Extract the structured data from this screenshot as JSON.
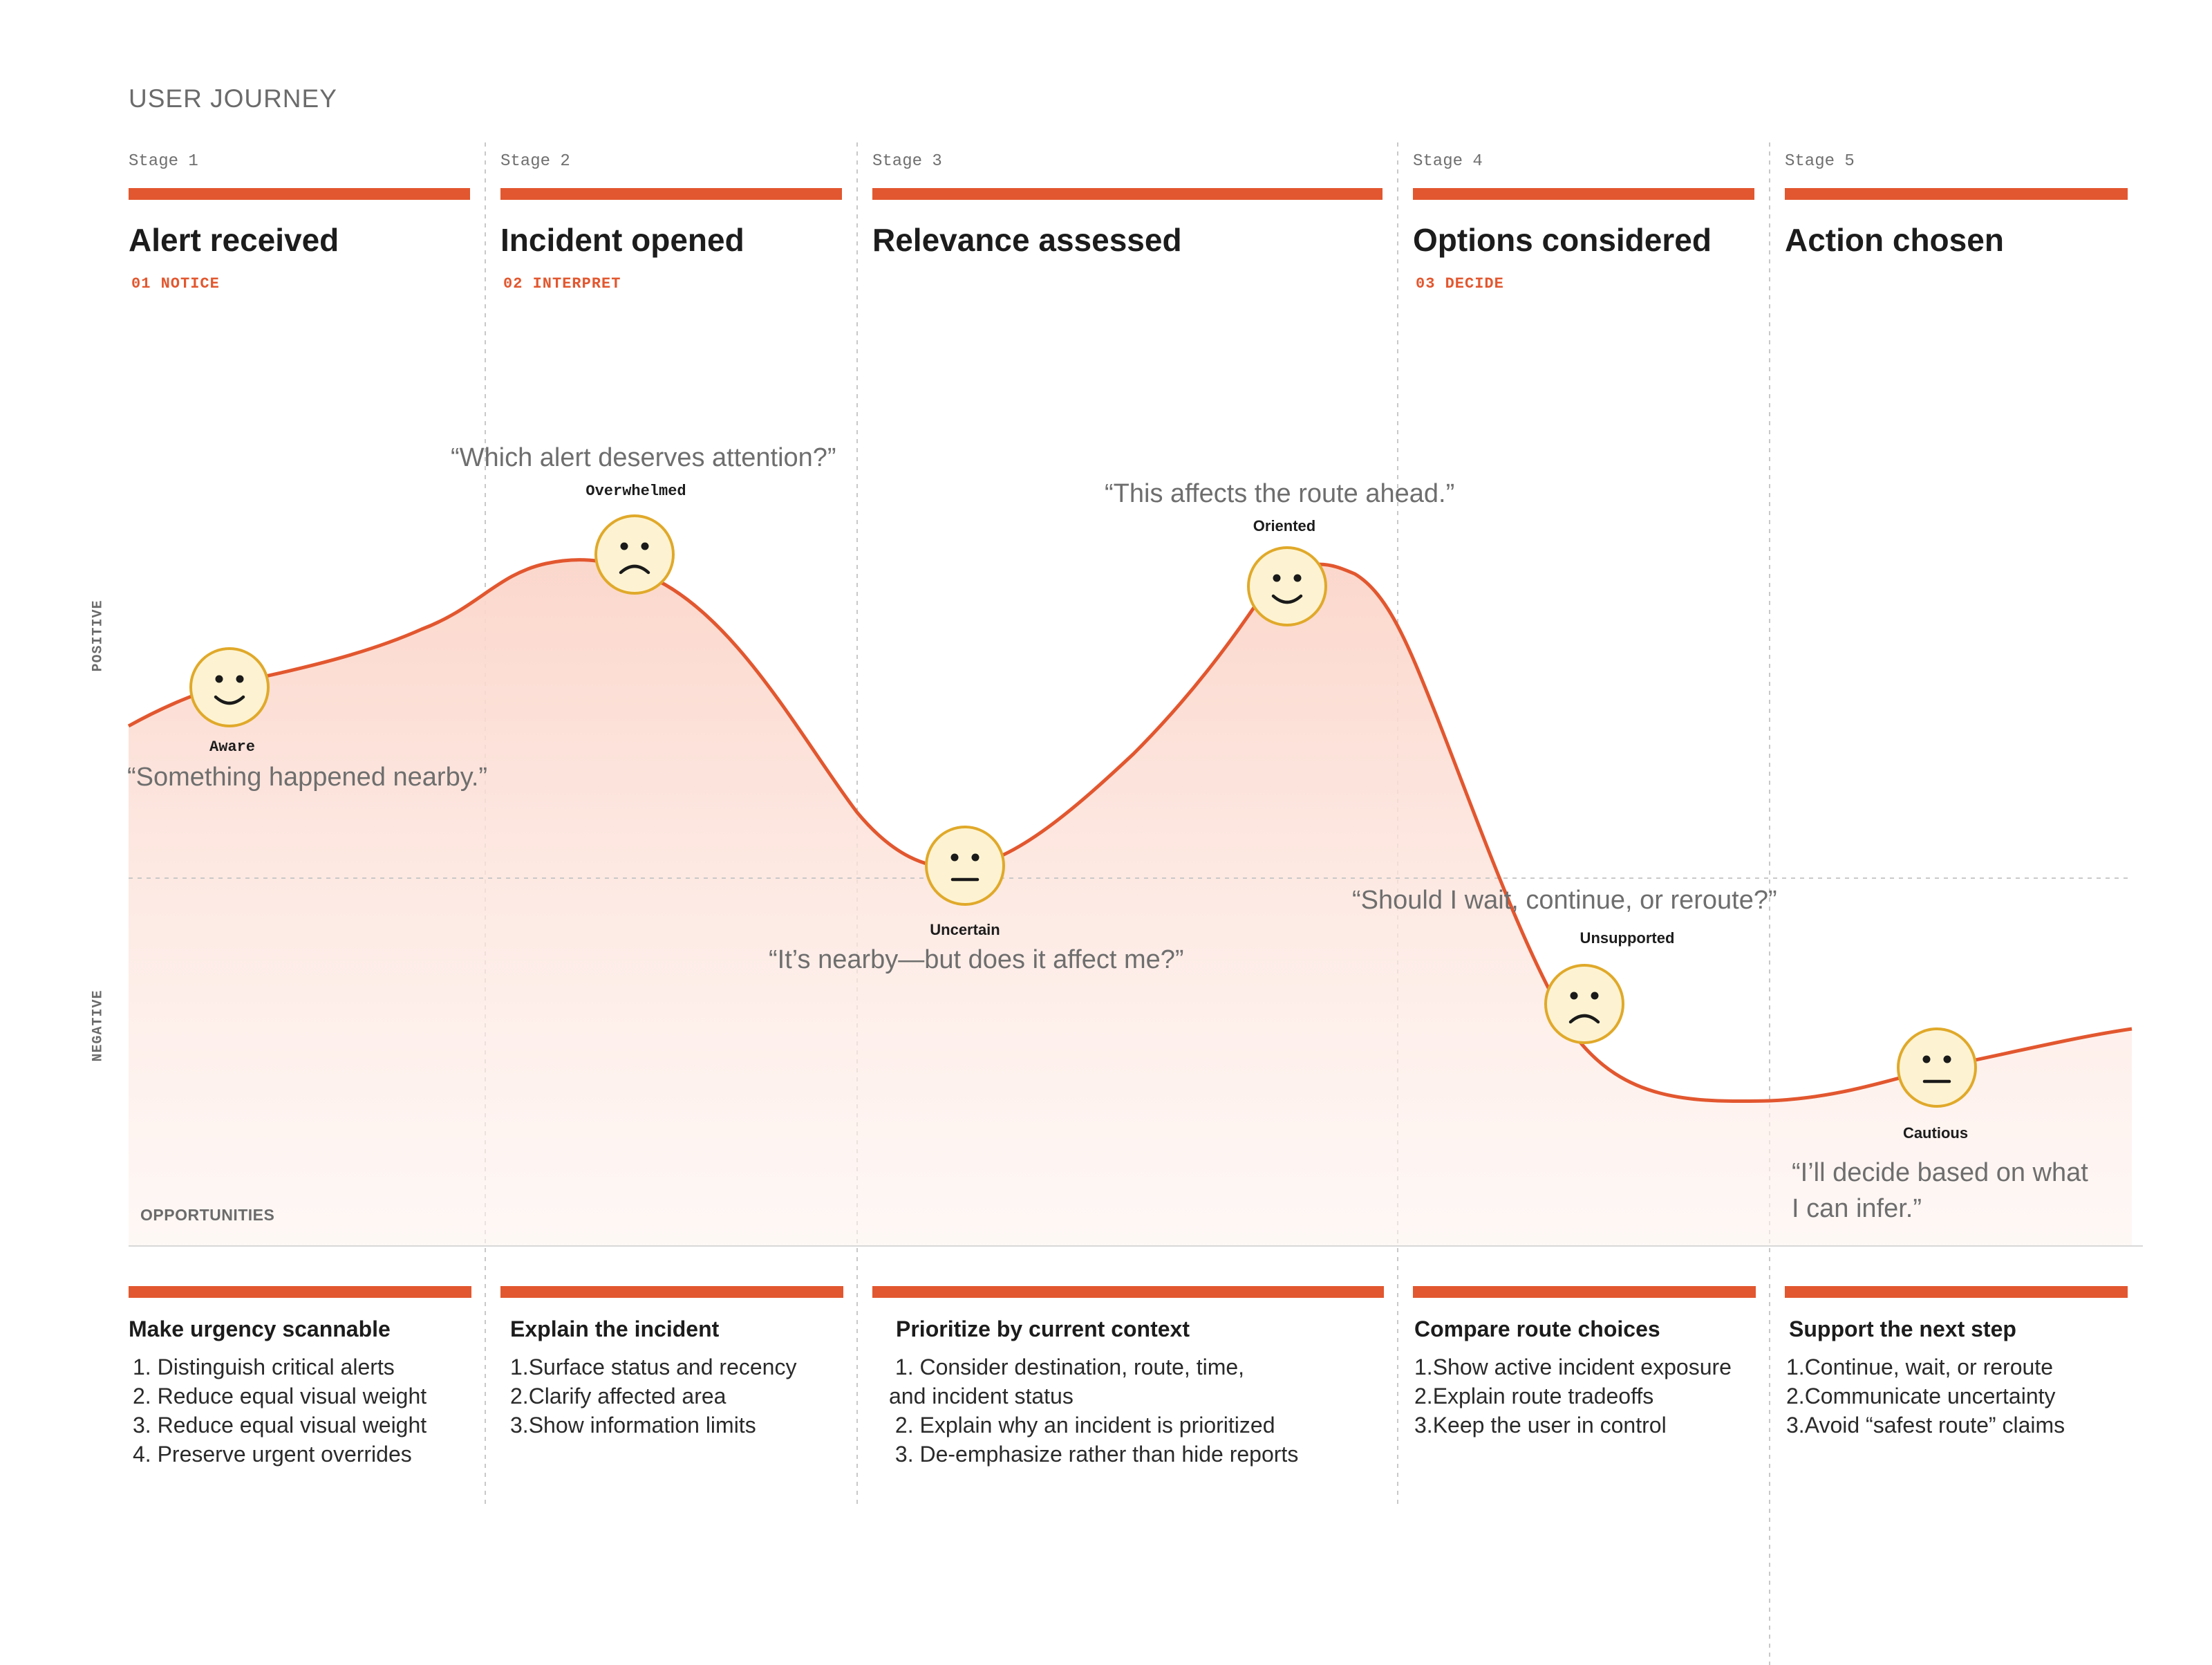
{
  "page_title": "USER JOURNEY",
  "axis": {
    "positive": "POSITIVE",
    "negative": "NEGATIVE"
  },
  "stages": [
    {
      "stage": "Stage 1",
      "name": "Alert received",
      "phase": "01 NOTICE"
    },
    {
      "stage": "Stage 2",
      "name": "Incident opened",
      "phase": "02 INTERPRET"
    },
    {
      "stage": "Stage 3",
      "name": "Relevance assessed",
      "phase": ""
    },
    {
      "stage": "Stage 4",
      "name": "Options considered",
      "phase": "03 DECIDE"
    },
    {
      "stage": "Stage 5",
      "name": "Action chosen",
      "phase": ""
    }
  ],
  "emotions": [
    {
      "label": "Aware",
      "mood": "happy",
      "quote": "“Something happened nearby.”"
    },
    {
      "label": "Overwhelmed",
      "mood": "sad",
      "quote": "“Which alert deserves attention?”"
    },
    {
      "label": "Uncertain",
      "mood": "neutral",
      "quote": "“It’s nearby—but does it affect me?”"
    },
    {
      "label": "Oriented",
      "mood": "happy",
      "quote": "“This affects the route ahead.”"
    },
    {
      "label": "Unsupported",
      "mood": "sad",
      "quote": "“Should I wait, continue, or reroute?”"
    },
    {
      "label": "Cautious",
      "mood": "neutral",
      "quote_line1": "“I’ll decide based on what",
      "quote_line2": "I can infer.”"
    }
  ],
  "opportunities_label": "OPPORTUNITIES",
  "opportunities": [
    {
      "title": "Make urgency scannable",
      "items": [
        "1. Distinguish critical alerts",
        "2. Reduce equal visual weight",
        "3. Reduce equal visual weight",
        "4. Preserve urgent overrides"
      ]
    },
    {
      "title": "Explain the incident",
      "items": [
        "1.Surface status and recency",
        "2.Clarify affected area",
        "3.Show information limits"
      ]
    },
    {
      "title": "Prioritize by current context",
      "items": [
        " 1. Consider destination, route, time,",
        "and incident status",
        " 2. Explain why an incident is prioritized",
        " 3. De-emphasize rather than hide reports"
      ]
    },
    {
      "title": "Compare route choices",
      "items": [
        "1.Show active incident exposure",
        "2.Explain route tradeoffs",
        "3.Keep the user in control"
      ]
    },
    {
      "title": "Support the next step",
      "items": [
        "1.Continue, wait, or reroute",
        "2.Communicate uncertainty",
        "3.Avoid “safest route” claims"
      ]
    }
  ],
  "colors": {
    "accent": "#e2572f",
    "face_fill": "#fdf3d2",
    "face_stroke": "#e0a92a",
    "area_top": "#fbd9cf"
  }
}
